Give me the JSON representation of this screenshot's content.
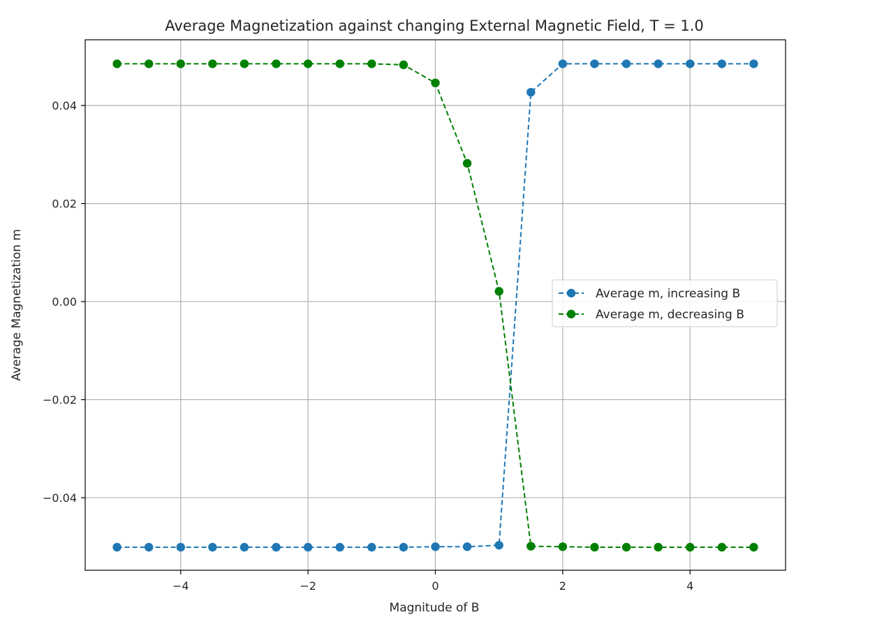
{
  "chart_data": {
    "type": "line",
    "title": "Average Magnetization against changing External Magnetic Field, T = 1.0",
    "xlabel": "Magnitude of B",
    "ylabel": "Average Magnetization m",
    "xlim": [
      -5.5,
      5.5
    ],
    "ylim": [
      -0.0548,
      0.0534
    ],
    "x_ticks": [
      -4,
      -2,
      0,
      2,
      4
    ],
    "x_tick_labels": [
      "−4",
      "−2",
      "0",
      "2",
      "4"
    ],
    "y_ticks": [
      -0.04,
      -0.02,
      0.0,
      0.02,
      0.04
    ],
    "y_tick_labels": [
      "−0.04",
      "−0.02",
      "0.00",
      "0.02",
      "0.04"
    ],
    "grid": true,
    "legend_position": "center-right",
    "x": [
      -5.0,
      -4.5,
      -4.0,
      -3.5,
      -3.0,
      -2.5,
      -2.0,
      -1.5,
      -1.0,
      -0.5,
      0.0,
      0.5,
      1.0,
      1.5,
      2.0,
      2.5,
      3.0,
      3.5,
      4.0,
      4.5,
      5.0
    ],
    "series": [
      {
        "name": "Average m, increasing B",
        "color": "#1f77b4",
        "line_style": "dashed",
        "marker": "circle",
        "values": [
          -0.0501,
          -0.0501,
          -0.0501,
          -0.0501,
          -0.0501,
          -0.0501,
          -0.0501,
          -0.0501,
          -0.0501,
          -0.0501,
          -0.05,
          -0.05,
          -0.0497,
          0.0427,
          0.0485,
          0.0485,
          0.0485,
          0.0485,
          0.0485,
          0.0485,
          0.0485
        ]
      },
      {
        "name": "Average m, decreasing B",
        "color": "#008000",
        "line_style": "dashed",
        "marker": "circle",
        "values": [
          0.0485,
          0.0485,
          0.0485,
          0.0485,
          0.0485,
          0.0485,
          0.0485,
          0.0485,
          0.0485,
          0.0483,
          0.0446,
          0.0282,
          0.0021,
          -0.0499,
          -0.05,
          -0.0501,
          -0.0501,
          -0.0501,
          -0.0501,
          -0.0501,
          -0.0501
        ]
      }
    ]
  }
}
